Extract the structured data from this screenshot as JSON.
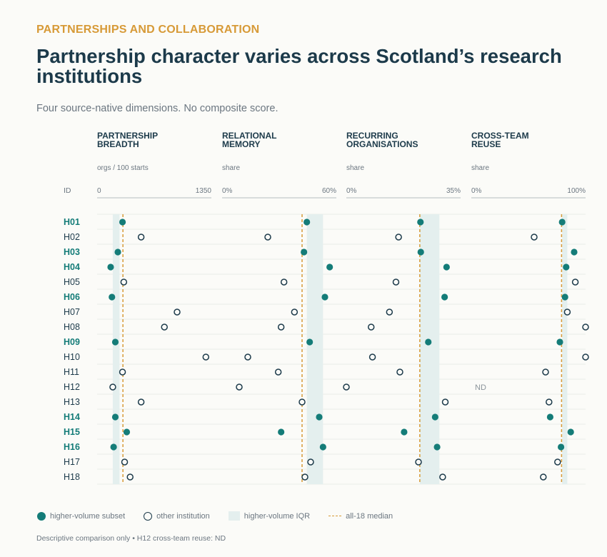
{
  "header": {
    "eyebrow": "PARTNERSHIPS AND COLLABORATION",
    "title": "Partnership character varies across Scotland’s research institutions",
    "subtitle": "Four source-native dimensions. No composite score."
  },
  "legend": {
    "filled": "higher-volume subset",
    "open": "other institution",
    "band": "higher-volume IQR",
    "median": "all-18 median"
  },
  "footnote": "Descriptive comparison only • H12 cross-team reuse: ND",
  "colors": {
    "teal": "#147c78",
    "navy": "#1c3a4a",
    "gold": "#d79a37",
    "band": "#e4efee",
    "muted": "#6b7680"
  },
  "chart_data": {
    "type": "scatter",
    "id_label": "ID",
    "missing_label": "ND",
    "rows": [
      {
        "id": "H01",
        "higher_volume": true
      },
      {
        "id": "H02",
        "higher_volume": false
      },
      {
        "id": "H03",
        "higher_volume": true
      },
      {
        "id": "H04",
        "higher_volume": true
      },
      {
        "id": "H05",
        "higher_volume": false
      },
      {
        "id": "H06",
        "higher_volume": true
      },
      {
        "id": "H07",
        "higher_volume": false
      },
      {
        "id": "H08",
        "higher_volume": false
      },
      {
        "id": "H09",
        "higher_volume": true
      },
      {
        "id": "H10",
        "higher_volume": false
      },
      {
        "id": "H11",
        "higher_volume": false
      },
      {
        "id": "H12",
        "higher_volume": false
      },
      {
        "id": "H13",
        "higher_volume": false
      },
      {
        "id": "H14",
        "higher_volume": true
      },
      {
        "id": "H15",
        "higher_volume": true
      },
      {
        "id": "H16",
        "higher_volume": true
      },
      {
        "id": "H17",
        "higher_volume": false
      },
      {
        "id": "H18",
        "higher_volume": false
      }
    ],
    "panels": [
      {
        "title_lines": [
          "PARTNERSHIP",
          "BREADTH"
        ],
        "unit": "orgs / 100 starts",
        "min_label": "0",
        "max_label": "1350",
        "range": [
          0,
          1350
        ],
        "median": 305,
        "iqr": [
          185,
          265
        ],
        "values": [
          300,
          520,
          245,
          160,
          315,
          175,
          945,
          795,
          215,
          1285,
          300,
          185,
          520,
          215,
          350,
          195,
          325,
          390
        ]
      },
      {
        "title_lines": [
          "RELATIONAL",
          "MEMORY"
        ],
        "unit": "share",
        "min_label": "0%",
        "max_label": "60%",
        "range": [
          0,
          60
        ],
        "median": 42,
        "iqr": [
          44.5,
          53
        ],
        "values": [
          44.5,
          24,
          43,
          56.5,
          32.5,
          54,
          38,
          31,
          46,
          13.5,
          29.5,
          9,
          42,
          51,
          31,
          53,
          46.5,
          43.5
        ]
      },
      {
        "title_lines": [
          "RECURRING",
          "ORGANISATIONS"
        ],
        "unit": "share",
        "min_label": "0%",
        "max_label": "35%",
        "range": [
          0,
          35
        ],
        "median": 22.5,
        "iqr": [
          22.5,
          28.5
        ],
        "values": [
          22.7,
          16,
          22.8,
          30.7,
          15.2,
          30.1,
          13.2,
          7.6,
          25.1,
          8,
          16.4,
          0,
          30.3,
          27.2,
          17.7,
          27.8,
          22.1,
          29.5
        ]
      },
      {
        "title_lines": [
          "CROSS-TEAM",
          "REUSE"
        ],
        "unit": "share",
        "min_label": "0%",
        "max_label": "100%",
        "range": [
          0,
          100
        ],
        "median": 79,
        "iqr": [
          79.5,
          84
        ],
        "values": [
          79.5,
          55,
          90,
          83,
          91,
          82,
          84,
          100,
          77.5,
          100,
          65,
          null,
          68,
          69,
          87,
          78.5,
          75.5,
          63
        ]
      }
    ]
  }
}
